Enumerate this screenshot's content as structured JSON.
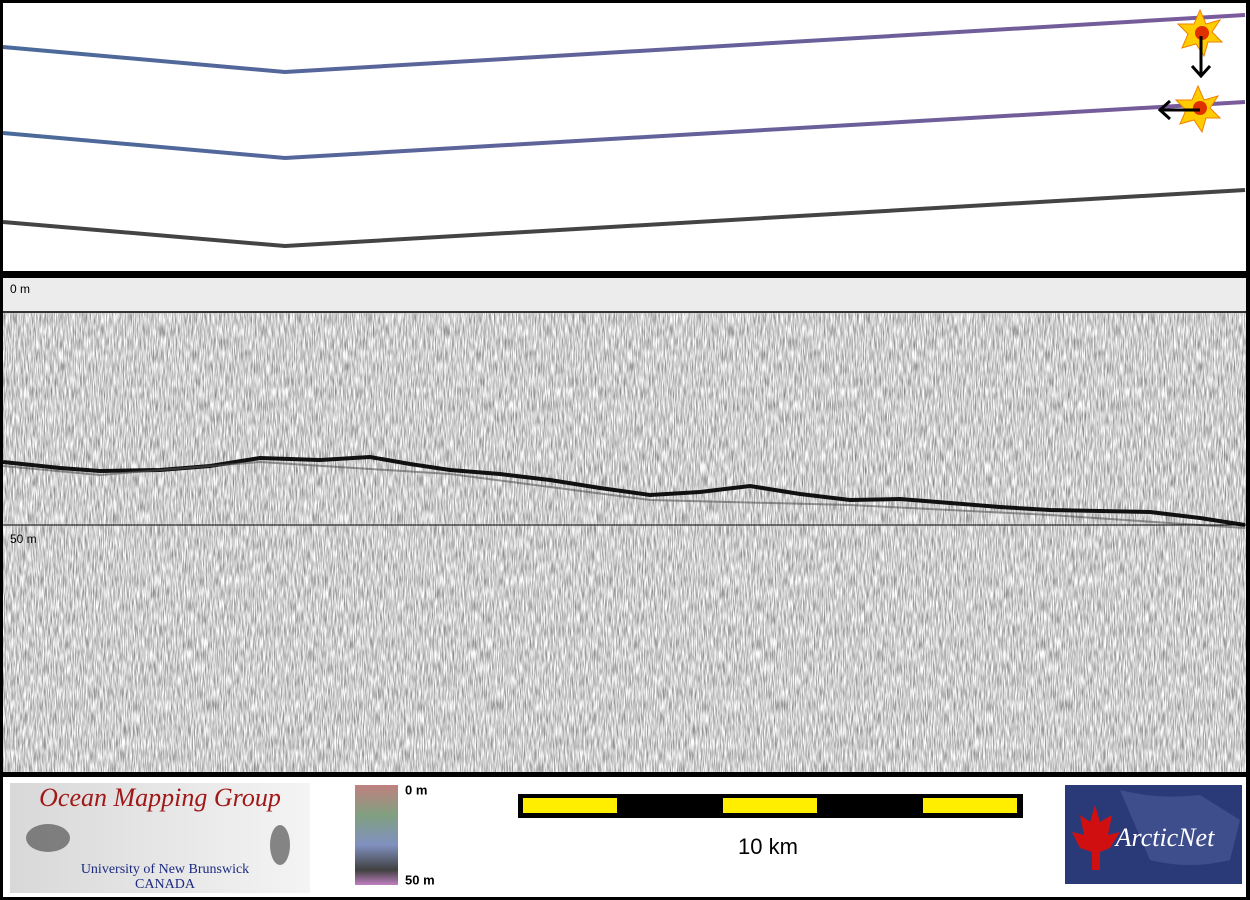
{
  "profile": {
    "depth_top": "0 m",
    "depth_mid": "50 m"
  },
  "footer": {
    "logo": {
      "title": "Ocean Mapping Group",
      "university": "University of New Brunswick",
      "country": "CANADA"
    },
    "colorbar": {
      "top": "0 m",
      "bottom": "50 m"
    },
    "scale": "10 km",
    "partner": "ArcticNet"
  }
}
